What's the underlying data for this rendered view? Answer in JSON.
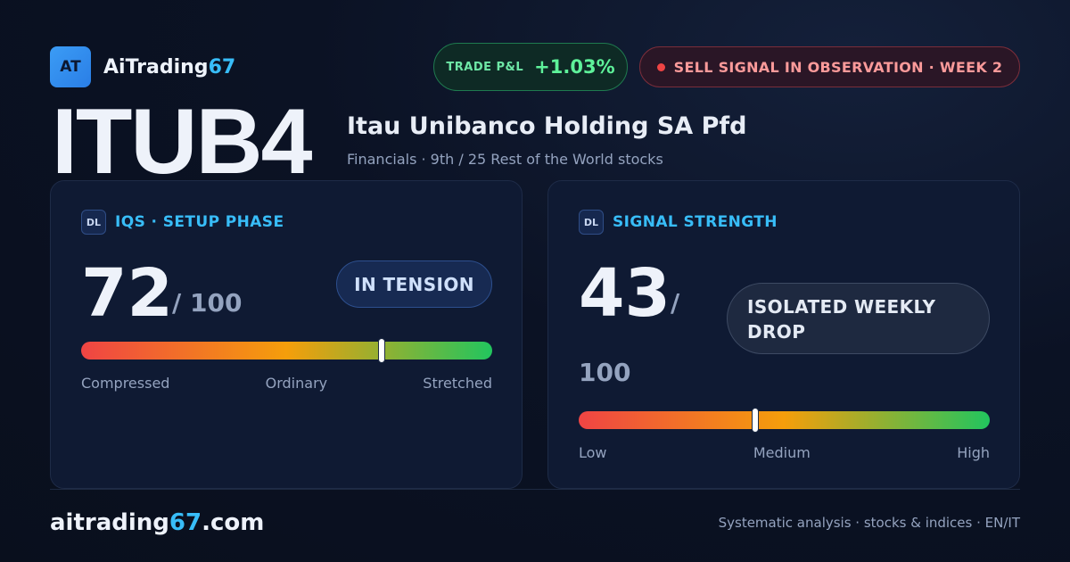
{
  "brand": {
    "logo_text": "AT",
    "name_main": "AiTrading",
    "name_accent": "67"
  },
  "trade_pnl": {
    "label": "TRADE P&L",
    "value": "+1.03%"
  },
  "signal_badge": {
    "text": "SELL SIGNAL IN OBSERVATION · WEEK 2",
    "status_color": "#ef4444"
  },
  "stock": {
    "ticker": "ITUB4",
    "company": "Itau Unibanco Holding SA Pfd",
    "sector_line": "Financials · 9th / 25 Rest of the World stocks"
  },
  "iqs_card": {
    "badge": "DL",
    "title": "IQS · SETUP PHASE",
    "score": "72",
    "max": "/ 100",
    "status": "IN TENSION",
    "level_fraction": 0.73,
    "scale_labels": [
      "Compressed",
      "Ordinary",
      "Stretched"
    ]
  },
  "signal_card": {
    "badge": "DL",
    "title": "SIGNAL STRENGTH",
    "score": "43",
    "max_slash": "/",
    "max_value": "100",
    "status": "ISOLATED WEEKLY DROP",
    "level_fraction": 0.43,
    "scale_labels": [
      "Low",
      "Medium",
      "High"
    ]
  },
  "footer": {
    "site_main": "aitrading",
    "site_accent": "67",
    "site_tld": ".com",
    "tagline": "Systematic analysis · stocks & indices · EN/IT"
  },
  "colors": {
    "accent": "#38bdf8",
    "positive": "#5ef29a",
    "negative": "#ef4444",
    "bar_gradient": [
      "#ef4444",
      "#f59e0b",
      "#22c55e"
    ]
  }
}
